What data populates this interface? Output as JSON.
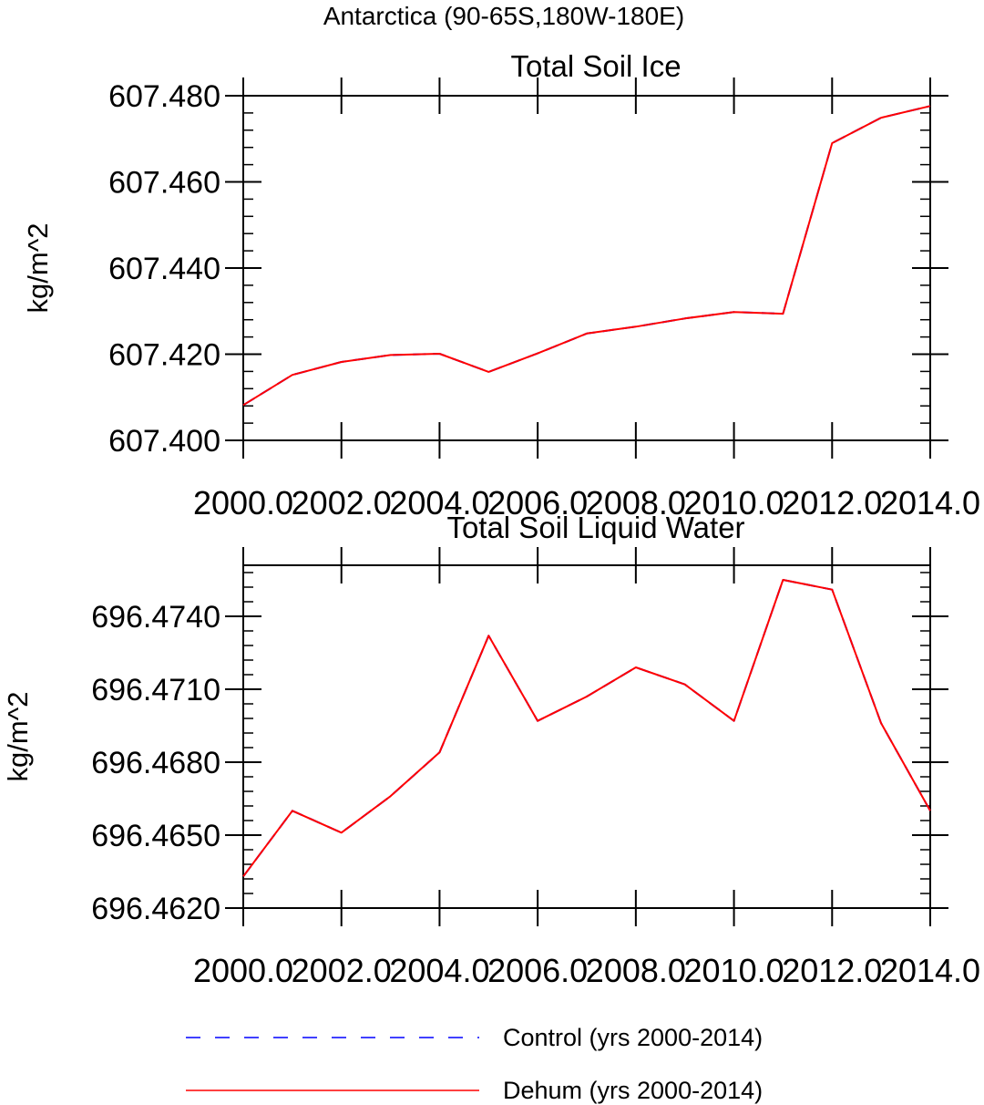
{
  "figure": {
    "suptitle": "Antarctica (90-65S,180W-180E)"
  },
  "legend": {
    "placement": "bottom",
    "entries": [
      {
        "label": "Control (yrs 2000-2014)",
        "color": "#0000ff",
        "style": "dashed"
      },
      {
        "label": "Dehum (yrs 2000-2014)",
        "color": "#ff0000",
        "style": "solid"
      }
    ]
  },
  "chart_data": [
    {
      "type": "line",
      "title": "Total Soil Ice",
      "xlabel": "",
      "ylabel": "kg/m^2",
      "xlim": [
        2000,
        2014
      ],
      "ylim": [
        607.4,
        607.48
      ],
      "x_ticks": [
        2000,
        2002,
        2004,
        2006,
        2008,
        2010,
        2012,
        2014
      ],
      "x_tick_labels": [
        "2000.0",
        "2002.0",
        "2004.0",
        "2006.0",
        "2008.0",
        "2010.0",
        "2012.0",
        "2014.0"
      ],
      "y_ticks": [
        607.4,
        607.42,
        607.44,
        607.46,
        607.48
      ],
      "y_tick_labels": [
        "607.400",
        "607.420",
        "607.440",
        "607.460",
        "607.480"
      ],
      "grid": false,
      "x": [
        2000,
        2001,
        2002,
        2003,
        2004,
        2005,
        2006,
        2007,
        2008,
        2009,
        2010,
        2011,
        2012,
        2013,
        2014
      ],
      "series": [
        {
          "name": "Control (yrs 2000-2014)",
          "color": "#0000ff",
          "style": "dashed",
          "values": [
            607.4082,
            607.4152,
            607.4182,
            607.4198,
            607.4201,
            607.4159,
            607.4202,
            607.4248,
            607.4264,
            607.4283,
            607.4298,
            607.4294,
            607.469,
            607.4749,
            607.4776
          ]
        },
        {
          "name": "Dehum (yrs 2000-2014)",
          "color": "#ff0000",
          "style": "solid",
          "values": [
            607.4082,
            607.4152,
            607.4182,
            607.4198,
            607.4201,
            607.4159,
            607.4202,
            607.4248,
            607.4264,
            607.4283,
            607.4298,
            607.4294,
            607.469,
            607.4749,
            607.4776
          ]
        }
      ]
    },
    {
      "type": "line",
      "title": "Total Soil Liquid Water",
      "xlabel": "",
      "ylabel": "kg/m^2",
      "xlim": [
        2000,
        2014
      ],
      "ylim": [
        696.462,
        696.4761
      ],
      "x_ticks": [
        2000,
        2002,
        2004,
        2006,
        2008,
        2010,
        2012,
        2014
      ],
      "x_tick_labels": [
        "2000.0",
        "2002.0",
        "2004.0",
        "2006.0",
        "2008.0",
        "2010.0",
        "2012.0",
        "2014.0"
      ],
      "y_ticks": [
        696.462,
        696.465,
        696.468,
        696.471,
        696.474
      ],
      "y_tick_labels": [
        "696.4620",
        "696.4650",
        "696.4680",
        "696.4710",
        "696.4740"
      ],
      "grid": false,
      "x": [
        2000,
        2001,
        2002,
        2003,
        2004,
        2005,
        2006,
        2007,
        2008,
        2009,
        2010,
        2011,
        2012,
        2013,
        2014
      ],
      "series": [
        {
          "name": "Control (yrs 2000-2014)",
          "color": "#0000ff",
          "style": "dashed",
          "values": [
            696.4633,
            696.466,
            696.4651,
            696.4666,
            696.4684,
            696.4732,
            696.4697,
            696.4707,
            696.4719,
            696.4712,
            696.4697,
            696.4755,
            696.4751,
            696.4696,
            696.466
          ]
        },
        {
          "name": "Dehum (yrs 2000-2014)",
          "color": "#ff0000",
          "style": "solid",
          "values": [
            696.4633,
            696.466,
            696.4651,
            696.4666,
            696.4684,
            696.4732,
            696.4697,
            696.4707,
            696.4719,
            696.4712,
            696.4697,
            696.4755,
            696.4751,
            696.4696,
            696.466
          ]
        }
      ]
    }
  ]
}
